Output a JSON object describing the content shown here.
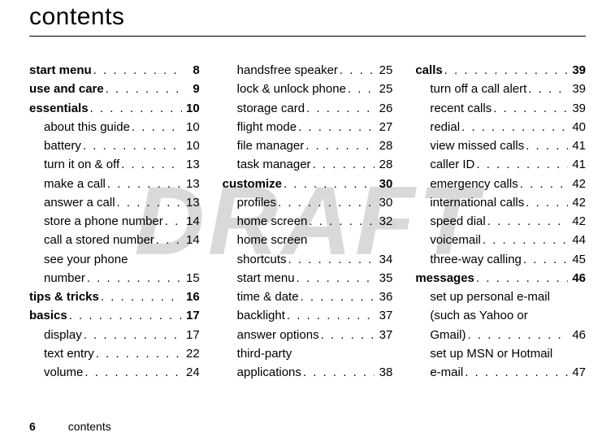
{
  "watermark": "DRAFT",
  "title": "contents",
  "footer": {
    "page": "6",
    "label": "contents"
  },
  "columns": [
    [
      {
        "label": "start menu",
        "page": "8",
        "bold": true,
        "sub": false
      },
      {
        "label": "use and care",
        "page": "9",
        "bold": true,
        "sub": false
      },
      {
        "label": "essentials",
        "page": "10",
        "bold": true,
        "sub": false
      },
      {
        "label": "about this guide",
        "page": "10",
        "bold": false,
        "sub": true
      },
      {
        "label": "battery",
        "page": "10",
        "bold": false,
        "sub": true
      },
      {
        "label": "turn it on & off",
        "page": "13",
        "bold": false,
        "sub": true
      },
      {
        "label": "make a call",
        "page": "13",
        "bold": false,
        "sub": true
      },
      {
        "label": "answer a call",
        "page": "13",
        "bold": false,
        "sub": true
      },
      {
        "label": "store a phone number",
        "page": "14",
        "bold": false,
        "sub": true,
        "tight": true
      },
      {
        "label": "call a stored number",
        "page": "14",
        "bold": false,
        "sub": true
      },
      {
        "label": "see your phone",
        "page": "",
        "bold": false,
        "sub": true,
        "nodots": true
      },
      {
        "label": "number",
        "page": "15",
        "bold": false,
        "sub": true
      },
      {
        "label": "tips & tricks",
        "page": "16",
        "bold": true,
        "sub": false
      },
      {
        "label": "basics",
        "page": "17",
        "bold": true,
        "sub": false
      },
      {
        "label": "display",
        "page": "17",
        "bold": false,
        "sub": true
      },
      {
        "label": "text entry",
        "page": "22",
        "bold": false,
        "sub": true
      },
      {
        "label": "volume",
        "page": "24",
        "bold": false,
        "sub": true
      }
    ],
    [
      {
        "label": "handsfree speaker",
        "page": "25",
        "bold": false,
        "sub": true
      },
      {
        "label": "lock & unlock phone",
        "page": "25",
        "bold": false,
        "sub": true
      },
      {
        "label": "storage card",
        "page": "26",
        "bold": false,
        "sub": true
      },
      {
        "label": "flight mode",
        "page": "27",
        "bold": false,
        "sub": true
      },
      {
        "label": "file manager",
        "page": "28",
        "bold": false,
        "sub": true
      },
      {
        "label": "task manager",
        "page": "28",
        "bold": false,
        "sub": true
      },
      {
        "label": "customize",
        "page": "30",
        "bold": true,
        "sub": false
      },
      {
        "label": "profiles",
        "page": "30",
        "bold": false,
        "sub": true
      },
      {
        "label": "home screen",
        "page": "32",
        "bold": false,
        "sub": true
      },
      {
        "label": "home screen",
        "page": "",
        "bold": false,
        "sub": true,
        "nodots": true
      },
      {
        "label": "shortcuts",
        "page": "34",
        "bold": false,
        "sub": true
      },
      {
        "label": "start menu",
        "page": "35",
        "bold": false,
        "sub": true
      },
      {
        "label": "time & date",
        "page": "36",
        "bold": false,
        "sub": true
      },
      {
        "label": "backlight",
        "page": "37",
        "bold": false,
        "sub": true
      },
      {
        "label": "answer options",
        "page": "37",
        "bold": false,
        "sub": true
      },
      {
        "label": "third-party",
        "page": "",
        "bold": false,
        "sub": true,
        "nodots": true
      },
      {
        "label": "applications",
        "page": "38",
        "bold": false,
        "sub": true
      }
    ],
    [
      {
        "label": "calls",
        "page": "39",
        "bold": true,
        "sub": false
      },
      {
        "label": "turn off a call alert",
        "page": "39",
        "bold": false,
        "sub": true
      },
      {
        "label": "recent calls",
        "page": "39",
        "bold": false,
        "sub": true
      },
      {
        "label": "redial",
        "page": "40",
        "bold": false,
        "sub": true
      },
      {
        "label": "view missed calls",
        "page": "41",
        "bold": false,
        "sub": true
      },
      {
        "label": "caller ID",
        "page": "41",
        "bold": false,
        "sub": true
      },
      {
        "label": "emergency calls",
        "page": "42",
        "bold": false,
        "sub": true
      },
      {
        "label": "international calls",
        "page": "42",
        "bold": false,
        "sub": true
      },
      {
        "label": "speed dial",
        "page": "42",
        "bold": false,
        "sub": true
      },
      {
        "label": "voicemail",
        "page": "44",
        "bold": false,
        "sub": true
      },
      {
        "label": "three-way calling",
        "page": "45",
        "bold": false,
        "sub": true
      },
      {
        "label": "messages",
        "page": "46",
        "bold": true,
        "sub": false
      },
      {
        "label": "set up personal e-mail",
        "page": "",
        "bold": false,
        "sub": true,
        "nodots": true
      },
      {
        "label": "(such as Yahoo or",
        "page": "",
        "bold": false,
        "sub": true,
        "nodots": true
      },
      {
        "label": "Gmail)",
        "page": "46",
        "bold": false,
        "sub": true
      },
      {
        "label": "set up MSN or Hotmail",
        "page": "",
        "bold": false,
        "sub": true,
        "nodots": true
      },
      {
        "label": "e-mail",
        "page": "47",
        "bold": false,
        "sub": true
      }
    ]
  ]
}
